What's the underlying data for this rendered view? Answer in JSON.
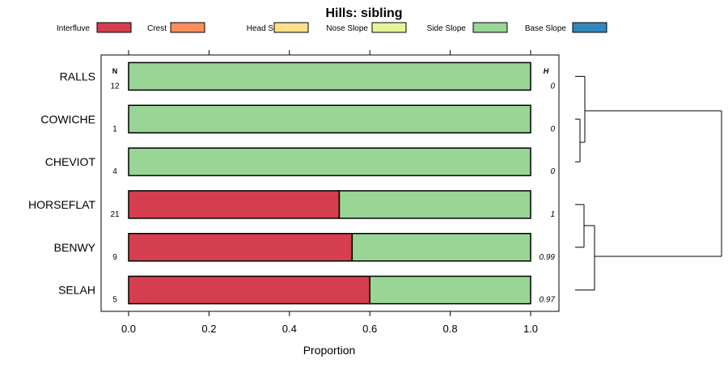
{
  "chart_data": {
    "type": "bar",
    "stacked": true,
    "orientation": "horizontal",
    "title": "Hills: sibling",
    "xlabel": "Proportion",
    "ylabel": "",
    "xlim": [
      0,
      1
    ],
    "x_ticks": [
      "0.0",
      "0.2",
      "0.4",
      "0.6",
      "0.8",
      "1.0"
    ],
    "n_header": "N",
    "h_header": "H",
    "legend": [
      {
        "name": "Interfluve",
        "color": "#d53e4f"
      },
      {
        "name": "Crest",
        "color": "#fc8d59"
      },
      {
        "name": "Head Slope",
        "color": "#fee08b"
      },
      {
        "name": "Nose Slope",
        "color": "#e6f598"
      },
      {
        "name": "Side Slope",
        "color": "#99d594"
      },
      {
        "name": "Base Slope",
        "color": "#3288bd"
      }
    ],
    "categories": [
      "RALLS",
      "COWICHE",
      "CHEVIOT",
      "HORSEFLAT",
      "BENWY",
      "SELAH"
    ],
    "n_values": [
      "12",
      "1",
      "4",
      "21",
      "9",
      "5"
    ],
    "h_values": [
      "0",
      "0",
      "0",
      "1",
      "0.99",
      "0.97"
    ],
    "series": [
      {
        "name": "Interfluve",
        "values": [
          0,
          0,
          0,
          0.524,
          0.556,
          0.6
        ]
      },
      {
        "name": "Crest",
        "values": [
          0,
          0,
          0,
          0,
          0,
          0
        ]
      },
      {
        "name": "Head Slope",
        "values": [
          0,
          0,
          0,
          0,
          0,
          0
        ]
      },
      {
        "name": "Nose Slope",
        "values": [
          0,
          0,
          0,
          0,
          0,
          0
        ]
      },
      {
        "name": "Side Slope",
        "values": [
          1,
          1,
          1,
          0.476,
          0.444,
          0.4
        ]
      },
      {
        "name": "Base Slope",
        "values": [
          0,
          0,
          0,
          0,
          0,
          0
        ]
      }
    ],
    "dendrogram_merges": [
      [
        "COWICHE",
        "CHEVIOT"
      ],
      [
        "RALLS",
        "COWICHE+CHEVIOT"
      ],
      [
        "HORSEFLAT",
        "BENWY"
      ],
      [
        "SELAH",
        "HORSEFLAT+BENWY"
      ],
      [
        "upper cluster",
        "lower cluster"
      ]
    ]
  }
}
